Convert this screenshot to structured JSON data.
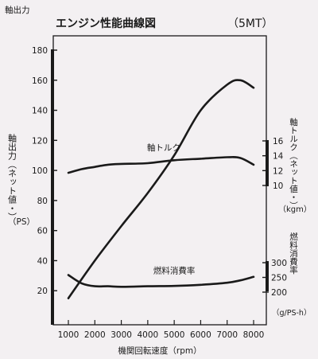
{
  "page": {
    "corner_label": "軸出力"
  },
  "chart_data": {
    "type": "line",
    "title": "エンジン性能曲線図",
    "subtitle": "（5MT）",
    "xlabel": "機関回転速度（rpm）",
    "xlim": [
      1000,
      8000
    ],
    "x_ticks": [
      1000,
      2000,
      3000,
      4000,
      5000,
      6000,
      7000,
      8000
    ],
    "grid": false,
    "y_axes": {
      "power": {
        "label": "軸出力（ネット値・）",
        "unit": "（PS）",
        "ylim": [
          0,
          180
        ],
        "ticks": [
          20,
          40,
          60,
          80,
          100,
          120,
          140,
          160,
          180
        ]
      },
      "torque": {
        "label": "軸トルク（ネット値・）",
        "unit": "（kgm）",
        "ylim": [
          10,
          16
        ],
        "ticks": [
          10,
          12,
          14,
          16
        ]
      },
      "fuel": {
        "label": "燃料消費率",
        "unit": "（g/PS-h）",
        "ylim": [
          200,
          300
        ],
        "ticks": [
          200,
          250,
          300
        ]
      }
    },
    "series": [
      {
        "name": "",
        "axis": "power",
        "x": [
          1000,
          2000,
          3000,
          4000,
          5000,
          6000,
          7000,
          7500,
          8000
        ],
        "values": [
          15,
          40,
          63,
          85,
          110,
          140,
          157,
          160,
          155
        ]
      },
      {
        "name": "軸トルク",
        "axis": "torque",
        "label_at": [
          4600,
          14.7
        ],
        "x": [
          1000,
          1500,
          2000,
          2500,
          3000,
          4000,
          5000,
          6000,
          7000,
          7500,
          8000
        ],
        "values": [
          11.7,
          12.2,
          12.5,
          12.8,
          12.9,
          13.0,
          13.4,
          13.6,
          13.8,
          13.7,
          12.8
        ]
      },
      {
        "name": "燃料消費率",
        "axis": "fuel",
        "label_at": [
          5000,
          264
        ],
        "x": [
          1000,
          1500,
          2000,
          2500,
          3000,
          4000,
          5000,
          6000,
          7000,
          7500,
          8000
        ],
        "values": [
          258,
          230,
          220,
          220,
          218,
          220,
          221,
          225,
          232,
          240,
          252
        ]
      }
    ]
  }
}
